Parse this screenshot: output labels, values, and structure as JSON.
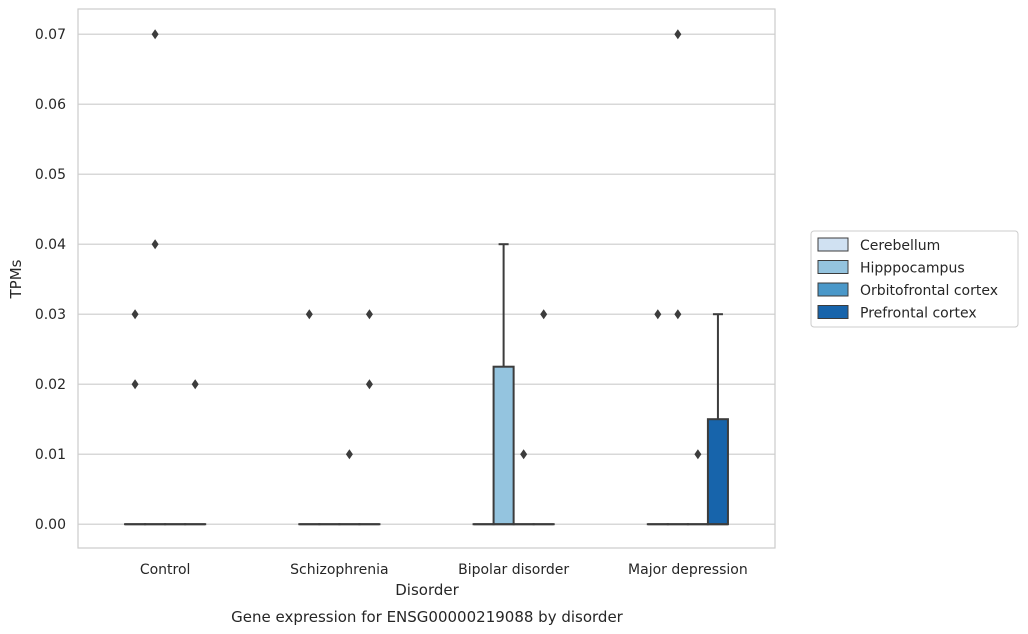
{
  "caption": "Gene expression for ENSG00000219088 by disorder",
  "chart_data": {
    "type": "box",
    "xlabel": "Disorder",
    "ylabel": "TPMs",
    "ylim": [
      -0.0034,
      0.0736
    ],
    "yticks": [
      "0.00",
      "0.01",
      "0.02",
      "0.03",
      "0.04",
      "0.05",
      "0.06",
      "0.07"
    ],
    "yticks_values": [
      0,
      0.01,
      0.02,
      0.03,
      0.04,
      0.05,
      0.06,
      0.07
    ],
    "grid": true,
    "legend_placement": "right",
    "categories": [
      "Control",
      "Schizophrenia",
      "Bipolar disorder",
      "Major depression"
    ],
    "series": [
      {
        "name": "Cerebellum",
        "color": "#d0e1f2",
        "boxes": [
          {
            "min": 0,
            "q1": 0,
            "median": 0,
            "q3": 0,
            "max": 0,
            "outliers": [
              0.02,
              0.03
            ]
          },
          {
            "min": 0,
            "q1": 0,
            "median": 0,
            "q3": 0,
            "max": 0,
            "outliers": [
              0.03
            ]
          },
          {
            "min": 0,
            "q1": 0,
            "median": 0,
            "q3": 0,
            "max": 0,
            "outliers": []
          },
          {
            "min": 0,
            "q1": 0,
            "median": 0,
            "q3": 0,
            "max": 0,
            "outliers": [
              0.03
            ]
          }
        ]
      },
      {
        "name": "Hipppocampus",
        "color": "#94c4df",
        "boxes": [
          {
            "min": 0,
            "q1": 0,
            "median": 0,
            "q3": 0,
            "max": 0,
            "outliers": [
              0.04,
              0.07
            ]
          },
          {
            "min": 0,
            "q1": 0,
            "median": 0,
            "q3": 0,
            "max": 0,
            "outliers": []
          },
          {
            "min": 0,
            "q1": 0,
            "median": 0,
            "q3": 0.0225,
            "max": 0.04,
            "outliers": []
          },
          {
            "min": 0,
            "q1": 0,
            "median": 0,
            "q3": 0,
            "max": 0,
            "outliers": [
              0.03,
              0.07
            ]
          }
        ]
      },
      {
        "name": "Orbitofrontal cortex",
        "color": "#4a98c9",
        "boxes": [
          {
            "min": 0,
            "q1": 0,
            "median": 0,
            "q3": 0,
            "max": 0,
            "outliers": []
          },
          {
            "min": 0,
            "q1": 0,
            "median": 0,
            "q3": 0,
            "max": 0,
            "outliers": [
              0.01
            ]
          },
          {
            "min": 0,
            "q1": 0,
            "median": 0,
            "q3": 0,
            "max": 0,
            "outliers": [
              0.01
            ]
          },
          {
            "min": 0,
            "q1": 0,
            "median": 0,
            "q3": 0,
            "max": 0,
            "outliers": [
              0.01
            ]
          }
        ]
      },
      {
        "name": "Prefrontal cortex",
        "color": "#1764ab",
        "boxes": [
          {
            "min": 0,
            "q1": 0,
            "median": 0,
            "q3": 0,
            "max": 0,
            "outliers": [
              0.02
            ]
          },
          {
            "min": 0,
            "q1": 0,
            "median": 0,
            "q3": 0,
            "max": 0,
            "outliers": [
              0.02,
              0.03
            ]
          },
          {
            "min": 0,
            "q1": 0,
            "median": 0,
            "q3": 0,
            "max": 0,
            "outliers": [
              0.03
            ]
          },
          {
            "min": 0,
            "q1": 0,
            "median": 0,
            "q3": 0.015,
            "max": 0.03,
            "outliers": []
          }
        ]
      }
    ]
  }
}
